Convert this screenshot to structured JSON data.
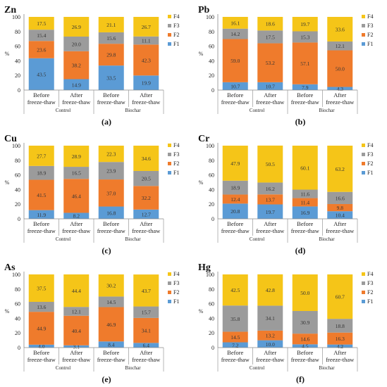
{
  "colors": {
    "F4": "#f5c518",
    "F3": "#9b9b9b",
    "F2": "#ef7b2c",
    "F1": "#5b9bd5"
  },
  "chart_data": [
    {
      "type": "bar",
      "stacked": true,
      "metal": "Zn",
      "panel_label": "(a)",
      "categories": [
        "Before freeze-thaw",
        "After freeze-thaw",
        "Before freeze-thaw",
        "After freeze-thaw"
      ],
      "groups": [
        "Control",
        "Biochar"
      ],
      "ylabel": "%",
      "ylim": [
        0,
        100
      ],
      "yticks": [
        0,
        20,
        40,
        60,
        80,
        100
      ],
      "legend_position": "right",
      "series": [
        {
          "name": "F1",
          "values": [
            43.5,
            14.9,
            33.5,
            19.9
          ]
        },
        {
          "name": "F2",
          "values": [
            23.6,
            38.2,
            29.8,
            42.3
          ]
        },
        {
          "name": "F3",
          "values": [
            15.4,
            20.0,
            15.6,
            11.1
          ]
        },
        {
          "name": "F4",
          "values": [
            17.5,
            26.9,
            21.1,
            26.7
          ]
        }
      ]
    },
    {
      "type": "bar",
      "stacked": true,
      "metal": "Pb",
      "panel_label": "(b)",
      "categories": [
        "Before freeze-thaw",
        "After freeze-thaw",
        "Before freeze-thaw",
        "After freeze-thaw"
      ],
      "groups": [
        "Control",
        "Biochar"
      ],
      "ylabel": "%",
      "ylim": [
        0,
        100
      ],
      "yticks": [
        0,
        20,
        40,
        60,
        80,
        100
      ],
      "legend_position": "right",
      "series": [
        {
          "name": "F1",
          "values": [
            10.7,
            10.7,
            7.9,
            4.3
          ]
        },
        {
          "name": "F2",
          "values": [
            59.0,
            53.2,
            57.1,
            50.0
          ]
        },
        {
          "name": "F3",
          "values": [
            14.2,
            17.5,
            15.3,
            12.1
          ]
        },
        {
          "name": "F4",
          "values": [
            16.1,
            18.6,
            19.7,
            33.6
          ]
        }
      ]
    },
    {
      "type": "bar",
      "stacked": true,
      "metal": "Cu",
      "panel_label": "(c)",
      "categories": [
        "Before freeze-thaw",
        "After freeze-thaw",
        "Before freeze-thaw",
        "After freeze-thaw"
      ],
      "groups": [
        "Control",
        "Biochar"
      ],
      "ylabel": "%",
      "ylim": [
        0,
        100
      ],
      "yticks": [
        0,
        20,
        40,
        60,
        80,
        100
      ],
      "legend_position": "right",
      "series": [
        {
          "name": "F1",
          "values": [
            11.9,
            8.2,
            16.8,
            12.7
          ]
        },
        {
          "name": "F2",
          "values": [
            41.5,
            46.4,
            37.0,
            32.2
          ]
        },
        {
          "name": "F3",
          "values": [
            18.9,
            16.5,
            23.9,
            20.5
          ]
        },
        {
          "name": "F4",
          "values": [
            27.7,
            28.9,
            22.3,
            34.6
          ]
        }
      ]
    },
    {
      "type": "bar",
      "stacked": true,
      "metal": "Cr",
      "panel_label": "(d)",
      "categories": [
        "Before freeze-thaw",
        "After freeze-thaw",
        "Before freeze-thaw",
        "After freeze-thaw"
      ],
      "groups": [
        "Control",
        "Biochar"
      ],
      "ylabel": "%",
      "ylim": [
        0,
        100
      ],
      "yticks": [
        0,
        20,
        40,
        60,
        80,
        100
      ],
      "legend_position": "right",
      "series": [
        {
          "name": "F1",
          "values": [
            20.8,
            19.7,
            16.9,
            10.4
          ]
        },
        {
          "name": "F2",
          "values": [
            12.4,
            13.7,
            11.4,
            9.8
          ]
        },
        {
          "name": "F3",
          "values": [
            18.9,
            16.2,
            11.6,
            16.6
          ]
        },
        {
          "name": "F4",
          "values": [
            47.9,
            50.5,
            60.1,
            63.2
          ]
        }
      ]
    },
    {
      "type": "bar",
      "stacked": true,
      "metal": "As",
      "panel_label": "(e)",
      "categories": [
        "Before freeze-thaw",
        "After freeze-thaw",
        "Before freeze-thaw",
        "After freeze-thaw"
      ],
      "groups": [
        "Control",
        "Biochar"
      ],
      "ylabel": "%",
      "ylim": [
        0,
        100
      ],
      "yticks": [
        0,
        20,
        40,
        60,
        80,
        100
      ],
      "legend_position": "right",
      "series": [
        {
          "name": "F1",
          "values": [
            4.0,
            3.1,
            8.4,
            6.4
          ]
        },
        {
          "name": "F2",
          "values": [
            44.9,
            40.4,
            46.9,
            34.1
          ]
        },
        {
          "name": "F3",
          "values": [
            13.6,
            12.1,
            14.5,
            15.7
          ]
        },
        {
          "name": "F4",
          "values": [
            37.5,
            44.4,
            30.2,
            43.7
          ]
        }
      ]
    },
    {
      "type": "bar",
      "stacked": true,
      "metal": "Hg",
      "panel_label": "(f)",
      "categories": [
        "Before freeze-thaw",
        "After freeze-thaw",
        "Before freeze-thaw",
        "After freeze-thaw"
      ],
      "groups": [
        "Control",
        "Biochar"
      ],
      "ylabel": "%",
      "ylim": [
        0,
        100
      ],
      "yticks": [
        0,
        20,
        40,
        60,
        80,
        100
      ],
      "legend_position": "right",
      "series": [
        {
          "name": "F1",
          "values": [
            7.2,
            10.0,
            4.5,
            4.2
          ]
        },
        {
          "name": "F2",
          "values": [
            14.5,
            13.2,
            14.6,
            16.3
          ]
        },
        {
          "name": "F3",
          "values": [
            35.8,
            34.1,
            30.9,
            18.8
          ]
        },
        {
          "name": "F4",
          "values": [
            42.5,
            42.8,
            50.0,
            60.7
          ]
        }
      ]
    }
  ]
}
